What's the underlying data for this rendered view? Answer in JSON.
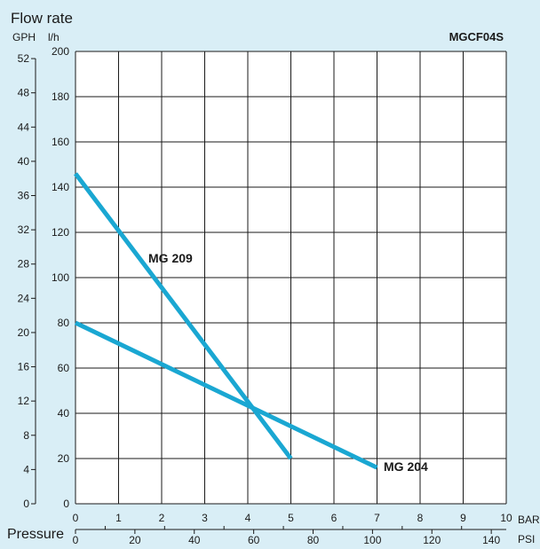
{
  "header": {
    "flow_label": "Flow rate",
    "gph_label": "GPH",
    "lh_label": "l/h",
    "model": "MGCF04S",
    "pressure_label": "Pressure",
    "bar_label": "BAR",
    "psi_label": "PSI"
  },
  "chart_data": {
    "type": "line",
    "title": "MGCF04S",
    "xlabel": "Pressure",
    "ylabel": "Flow rate",
    "x_unit": "BAR",
    "y_unit": "l/h",
    "xlim": [
      0,
      10
    ],
    "ylim": [
      0,
      200
    ],
    "grid": true,
    "x_ticks": [
      "0",
      "1",
      "2",
      "3",
      "4",
      "5",
      "6",
      "7",
      "8",
      "9",
      "10"
    ],
    "y_ticks": [
      "0",
      "20",
      "40",
      "60",
      "80",
      "100",
      "120",
      "140",
      "160",
      "180",
      "200"
    ],
    "gph_ticks": [
      "0",
      "4",
      "8",
      "12",
      "16",
      "20",
      "24",
      "28",
      "32",
      "36",
      "40",
      "44",
      "48",
      "52"
    ],
    "psi_ticks": [
      "0",
      "20",
      "40",
      "60",
      "80",
      "100",
      "120",
      "140"
    ],
    "series": [
      {
        "name": "MG 209",
        "x": [
          0,
          5
        ],
        "y": [
          146,
          20
        ]
      },
      {
        "name": "MG 204",
        "x": [
          0,
          7
        ],
        "y": [
          80,
          16
        ]
      }
    ],
    "line_color": "#1aa7d2"
  }
}
